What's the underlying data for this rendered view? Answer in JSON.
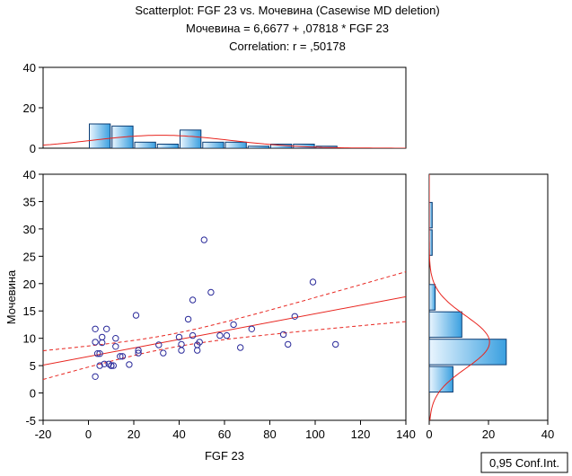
{
  "titles": {
    "line1": "Scatterplot: FGF 23 vs. Мочевина (Casewise MD deletion)",
    "line2": "Мочевина = 6,6677 + ,07818 * FGF 23",
    "line3": "Correlation: r = ,50178"
  },
  "legend_box": "0,95 Conf.Int.",
  "colors": {
    "points": "#2a2a9a",
    "regression": "#e8251f",
    "bar_fill_light": "#eaf5fe",
    "bar_fill_dark": "#3aa0e0",
    "bar_edge": "#0a3c74"
  },
  "chart_data": [
    {
      "type": "scatter",
      "xlabel": "FGF 23",
      "ylabel": "Мочевина",
      "xlim": [
        -20,
        140
      ],
      "ylim": [
        -5,
        40
      ],
      "xticks": [
        -20,
        0,
        20,
        40,
        60,
        80,
        100,
        120,
        140
      ],
      "yticks": [
        -5,
        0,
        5,
        10,
        15,
        20,
        25,
        30,
        35,
        40
      ],
      "regression": {
        "intercept": 6.6677,
        "slope": 0.07818
      },
      "conf_band": "0,95 Conf.Int.",
      "points": [
        [
          3,
          11.7
        ],
        [
          3,
          9.3
        ],
        [
          3,
          3
        ],
        [
          4,
          7.2
        ],
        [
          5,
          7.2
        ],
        [
          5,
          5
        ],
        [
          6,
          10.2
        ],
        [
          6,
          9.2
        ],
        [
          7,
          5.3
        ],
        [
          8,
          11.7
        ],
        [
          9,
          5.3
        ],
        [
          10,
          5
        ],
        [
          10,
          5
        ],
        [
          11,
          5
        ],
        [
          12,
          10
        ],
        [
          12,
          8.5
        ],
        [
          14,
          6.7
        ],
        [
          15,
          6.7
        ],
        [
          18,
          5.2
        ],
        [
          21,
          14.2
        ],
        [
          22,
          7.3
        ],
        [
          22,
          7.8
        ],
        [
          31,
          8.8
        ],
        [
          33,
          7.3
        ],
        [
          40,
          10.2
        ],
        [
          41,
          7.8
        ],
        [
          41,
          8.9
        ],
        [
          44,
          13.5
        ],
        [
          46,
          10.5
        ],
        [
          46,
          17
        ],
        [
          48,
          7.8
        ],
        [
          48,
          8.8
        ],
        [
          49,
          9.3
        ],
        [
          51,
          28
        ],
        [
          54,
          18.4
        ],
        [
          58,
          10.5
        ],
        [
          61,
          10.5
        ],
        [
          64,
          12.5
        ],
        [
          67,
          8.3
        ],
        [
          72,
          11.7
        ],
        [
          86,
          10.7
        ],
        [
          88,
          8.9
        ],
        [
          91,
          14
        ],
        [
          99,
          20.3
        ],
        [
          109,
          8.9
        ]
      ]
    },
    {
      "type": "bar",
      "name": "FGF 23 histogram",
      "ylim": [
        0,
        40
      ],
      "yticks": [
        0,
        20,
        40
      ],
      "bin_edges": [
        -20,
        -10,
        0,
        10,
        20,
        30,
        40,
        50,
        60,
        70,
        80,
        90,
        100,
        110,
        120,
        130,
        140
      ],
      "values": [
        0,
        0,
        12,
        11,
        3,
        2,
        9,
        3,
        3,
        1,
        2,
        2,
        1,
        0,
        0,
        0
      ],
      "normal_fit": {
        "mean": 32,
        "sd": 30.5
      }
    },
    {
      "type": "bar",
      "name": "Мочевина histogram",
      "orientation": "horizontal",
      "xlim": [
        0,
        40
      ],
      "xticks": [
        0,
        20,
        40
      ],
      "bin_edges": [
        -5,
        0,
        5,
        10,
        15,
        20,
        25,
        30,
        35,
        40
      ],
      "values": [
        0,
        8,
        26,
        11,
        2,
        0,
        1,
        1,
        0
      ],
      "normal_fit": {
        "mean": 9.3,
        "sd": 4.8
      }
    }
  ]
}
